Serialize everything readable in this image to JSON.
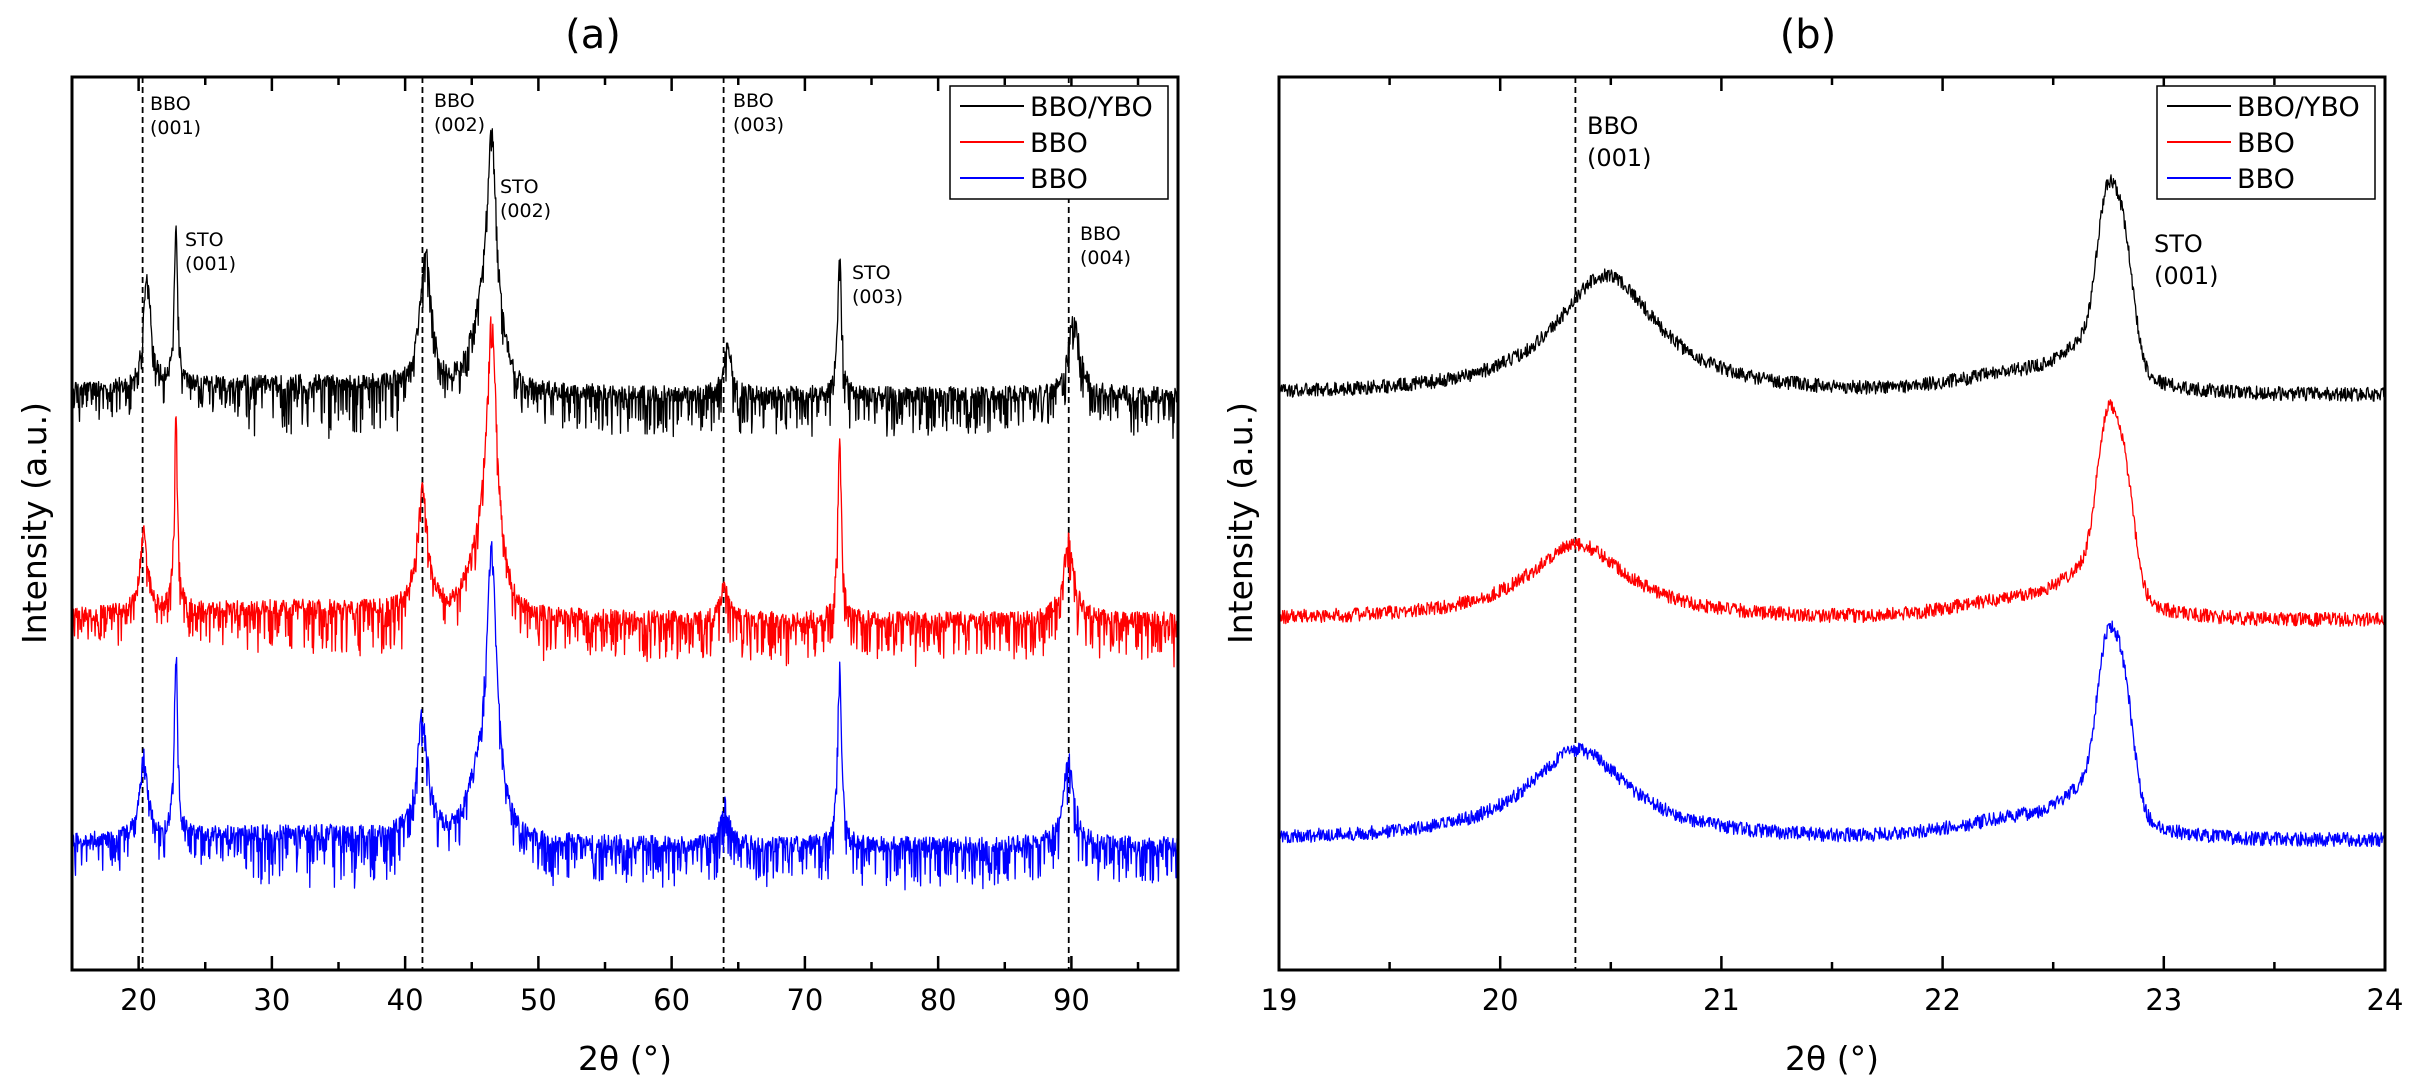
{
  "chart_data": [
    {
      "type": "line",
      "title": "(a)",
      "xlabel": "2θ (°)",
      "ylabel": "Intensity (a.u.)",
      "xlim": [
        15,
        98
      ],
      "xticks": [
        20,
        30,
        40,
        50,
        60,
        70,
        80,
        90
      ],
      "xtick_labels": [
        "20",
        "30",
        "40",
        "50",
        "60",
        "70",
        "80",
        "90"
      ],
      "yticks": [],
      "legend_position": "top-right",
      "series": [
        {
          "name": "BBO/YBO",
          "color": "#000000"
        },
        {
          "name": "BBO",
          "color": "#ff0000"
        },
        {
          "name": "BBO",
          "color": "#0000ff"
        }
      ],
      "peaks_approx": [
        {
          "x": 20.5,
          "label": "BBO (001)"
        },
        {
          "x": 22.8,
          "label": "STO (001)"
        },
        {
          "x": 41.4,
          "label": "BBO (002)"
        },
        {
          "x": 46.5,
          "label": "STO (002)"
        },
        {
          "x": 64.2,
          "label": "BBO (003)"
        },
        {
          "x": 72.6,
          "label": "STO (003)"
        },
        {
          "x": 90.3,
          "label": "BBO (004)"
        }
      ],
      "reference_lines": [
        20.3,
        41.3,
        63.9,
        89.8
      ],
      "annotations": [
        {
          "line1": "BBO",
          "line2": "(001)"
        },
        {
          "line1": "STO",
          "line2": "(001)"
        },
        {
          "line1": "BBO",
          "line2": "(002)"
        },
        {
          "line1": "STO",
          "line2": "(002)"
        },
        {
          "line1": "BBO",
          "line2": "(003)"
        },
        {
          "line1": "STO",
          "line2": "(003)"
        },
        {
          "line1": "BBO",
          "line2": "(004)"
        }
      ]
    },
    {
      "type": "line",
      "title": "(b)",
      "xlabel": "2θ (°)",
      "ylabel": "Intensity (a.u.)",
      "xlim": [
        19,
        24
      ],
      "xticks": [
        19,
        20,
        21,
        22,
        23,
        24
      ],
      "xtick_labels": [
        "19",
        "20",
        "21",
        "22",
        "23",
        "24"
      ],
      "yticks": [],
      "legend_position": "top-right",
      "series": [
        {
          "name": "BBO/YBO",
          "color": "#000000"
        },
        {
          "name": "BBO",
          "color": "#ff0000"
        },
        {
          "name": "BBO",
          "color": "#0000ff"
        }
      ],
      "peaks_approx": [
        {
          "series": 0,
          "x": 20.48,
          "label": "BBO (001)"
        },
        {
          "series": 1,
          "x": 20.35,
          "label": "BBO (001)"
        },
        {
          "series": 2,
          "x": 20.35,
          "label": "BBO (001)"
        },
        {
          "x": 22.77,
          "label": "STO (001)"
        }
      ],
      "reference_lines": [
        20.34
      ],
      "annotations": [
        {
          "line1": "BBO",
          "line2": "(001)"
        },
        {
          "line1": "STO",
          "line2": "(001)"
        }
      ]
    }
  ]
}
